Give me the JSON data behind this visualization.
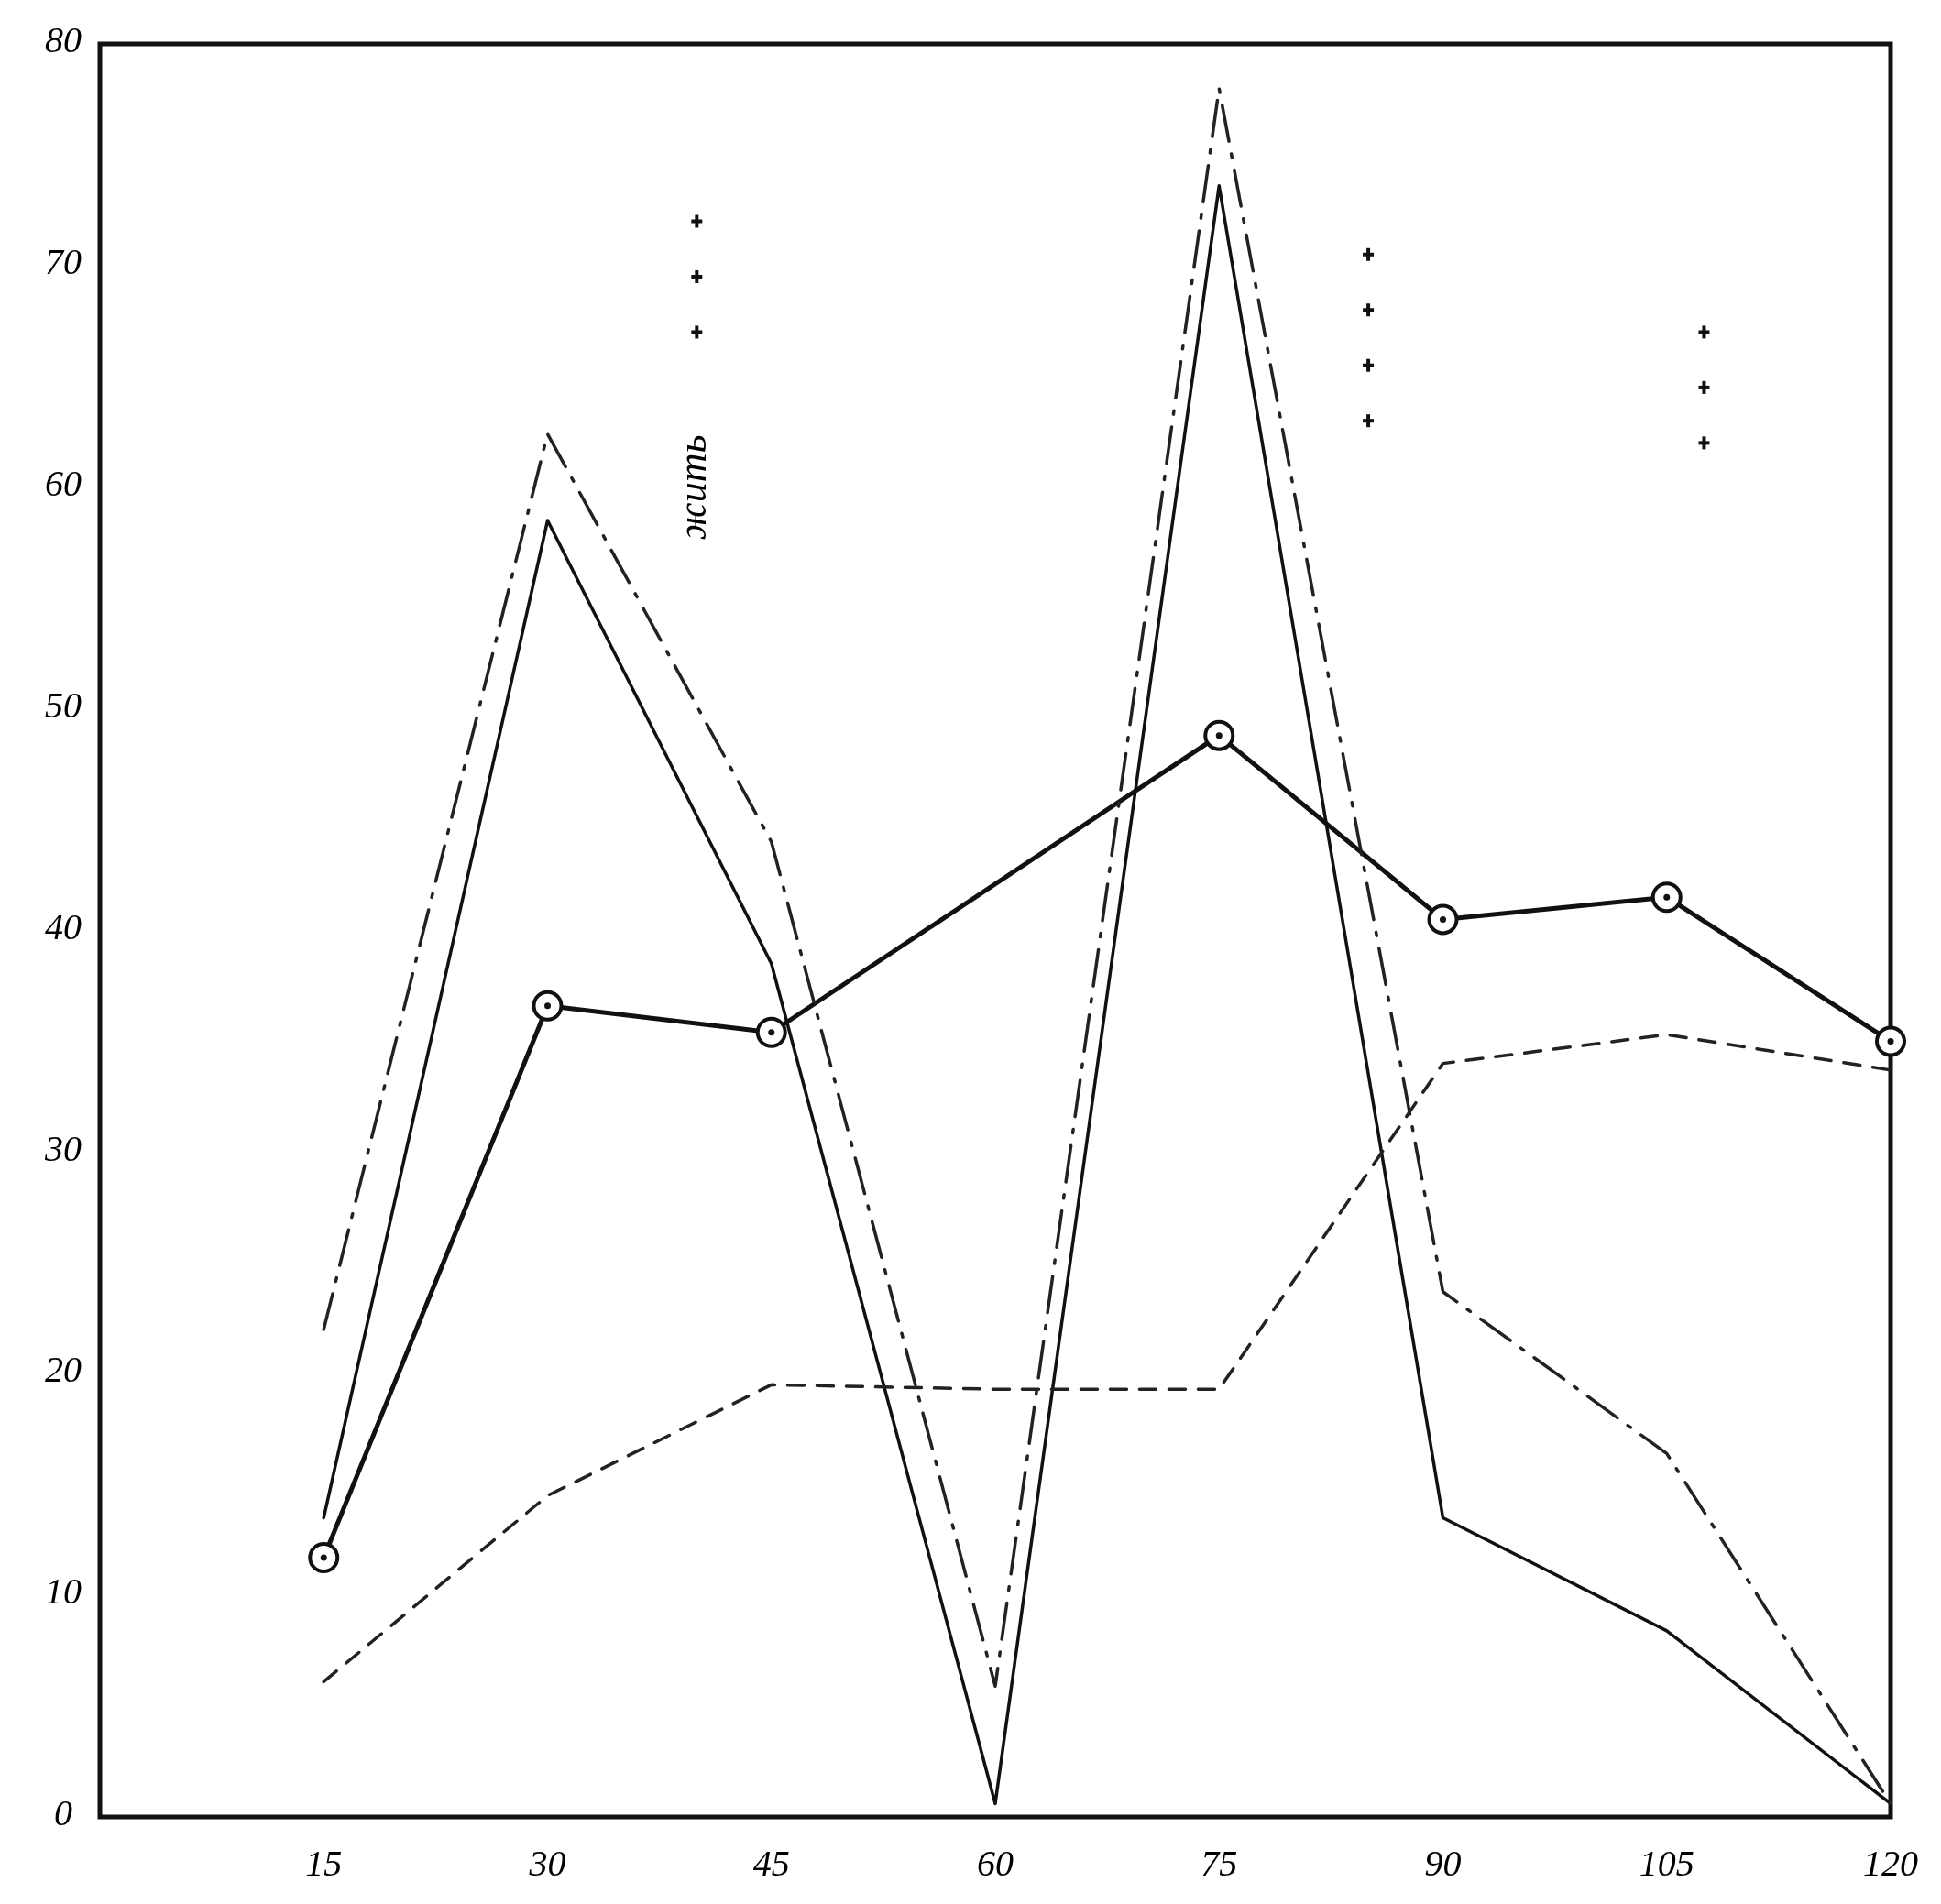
{
  "chart_data": {
    "type": "line",
    "xlim": [
      0,
      120
    ],
    "ylim": [
      0,
      80
    ],
    "xticks": [
      15,
      30,
      45,
      60,
      75,
      90,
      105,
      120
    ],
    "yticks": [
      0,
      10,
      20,
      30,
      40,
      50,
      60,
      70,
      80
    ],
    "annotations": [
      "жить"
    ],
    "series": [
      {
        "color": "#111111",
        "x": [
          15,
          30,
          45,
          75,
          90,
          105,
          120
        ],
        "values": [
          11.7,
          36.6,
          35.4,
          48.8,
          40.5,
          41.5,
          35
        ],
        "marker": "circle",
        "line_style": "solid"
      },
      {
        "color": "#111111",
        "x": [
          15,
          30,
          45,
          60,
          75,
          90,
          105,
          120
        ],
        "values": [
          13.5,
          58.5,
          38.5,
          0.6,
          73.6,
          13.5,
          8.4,
          0.6
        ],
        "marker": "none",
        "line_style": "solid"
      },
      {
        "color": "#222222",
        "x": [
          15,
          30,
          45,
          60,
          75,
          90,
          105,
          120
        ],
        "values": [
          22,
          62.4,
          44,
          5.9,
          78,
          23.7,
          16.4,
          0.6
        ],
        "marker": "none",
        "line_style": "dashdot"
      },
      {
        "color": "#222222",
        "x": [
          15,
          30,
          45,
          60,
          75,
          90,
          105,
          120
        ],
        "values": [
          6.1,
          14.5,
          19.5,
          19.3,
          19.3,
          34,
          35.3,
          33.7
        ],
        "marker": "none",
        "line_style": "dashed"
      }
    ]
  }
}
